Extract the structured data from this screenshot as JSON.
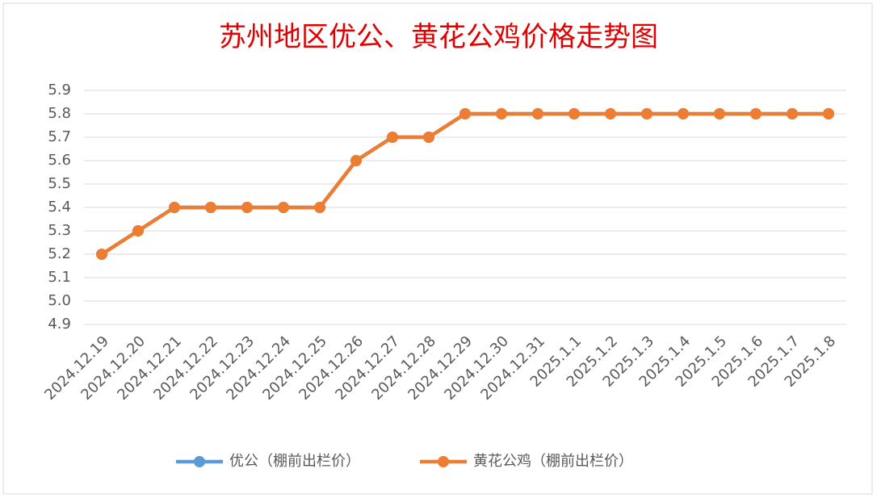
{
  "chart_data": {
    "type": "line",
    "title": "苏州地区优公、黄花公鸡价格走势图",
    "categories": [
      "2024.12.19",
      "2024.12.20",
      "2024.12.21",
      "2024.12.22",
      "2024.12.23",
      "2024.12.24",
      "2024.12.25",
      "2024.12.26",
      "2024.12.27",
      "2024.12.28",
      "2024.12.29",
      "2024.12.30",
      "2024.12.31",
      "2025.1.1",
      "2025.1.2",
      "2025.1.3",
      "2025.1.4",
      "2025.1.5",
      "2025.1.6",
      "2025.1.7",
      "2025.1.8"
    ],
    "series": [
      {
        "name": "优公（棚前出栏价）",
        "color": "#5b9bd5",
        "values": [
          5.2,
          5.3,
          5.4,
          5.4,
          5.4,
          5.4,
          5.4,
          5.6,
          5.7,
          5.7,
          5.8,
          5.8,
          5.8,
          5.8,
          5.8,
          5.8,
          5.8,
          5.8,
          5.8,
          5.8,
          5.8
        ]
      },
      {
        "name": "黄花公鸡（棚前出栏价）",
        "color": "#ed7d31",
        "values": [
          5.2,
          5.3,
          5.4,
          5.4,
          5.4,
          5.4,
          5.4,
          5.6,
          5.7,
          5.7,
          5.8,
          5.8,
          5.8,
          5.8,
          5.8,
          5.8,
          5.8,
          5.8,
          5.8,
          5.8,
          5.8
        ]
      }
    ],
    "ylim": [
      4.9,
      5.9
    ],
    "yticks": [
      4.9,
      {
        "value": 5,
        "label": "5.0"
      },
      5.1,
      5.2,
      5.3,
      5.4,
      5.5,
      5.6,
      5.7,
      5.8,
      5.9
    ],
    "grid": true,
    "legend": "bottom"
  }
}
